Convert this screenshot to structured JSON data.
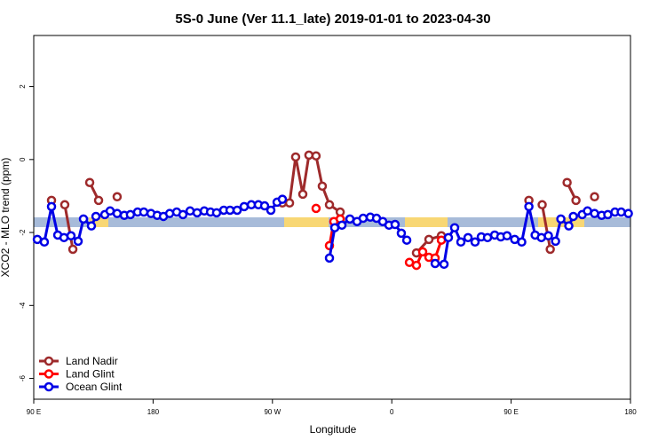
{
  "chart_data": {
    "type": "line",
    "title": "5S-0 June (Ver 11.1_late)   2019-01-01 to 2023-04-30",
    "x_label": "Longitude",
    "y_label": "XCO2 - MLO trend (ppm)",
    "xlim": [
      90,
      540
    ],
    "xticks": [
      {
        "value": 90,
        "label": "90 E"
      },
      {
        "value": 180,
        "label": "180"
      },
      {
        "value": 270,
        "label": "90 W"
      },
      {
        "value": 360,
        "label": "0"
      },
      {
        "value": 450,
        "label": "90 E"
      },
      {
        "value": 540,
        "label": "180"
      }
    ],
    "ylim": [
      -6.57,
      3.4
    ],
    "yticks": [
      2,
      0,
      -2,
      -4,
      -6
    ],
    "legend": "bottom-left",
    "series": [
      {
        "name": "Land Nadir",
        "color": "#9e2a2b",
        "x": [
          103.4,
          null,
          113.4,
          119.5,
          null,
          132.2,
          138.9,
          null,
          152.9,
          null,
          277.5,
          282.9,
          287.5,
          292.9,
          297.5,
          302.9,
          307.6,
          313,
          321.1,
          null,
          378.6,
          388,
          397.4,
          null,
          463.4,
          null,
          473.4,
          479.5,
          null,
          492.2,
          498.9,
          null,
          512.9
        ],
        "values": [
          -1.12,
          null,
          -1.24,
          -2.46,
          null,
          -0.63,
          -1.12,
          null,
          -1.02,
          null,
          -1.19,
          -1.19,
          0.07,
          -0.95,
          0.12,
          0.1,
          -0.73,
          -1.24,
          -1.44,
          null,
          -2.56,
          -2.19,
          -2.09,
          null,
          -1.12,
          null,
          -1.24,
          -2.46,
          null,
          -0.63,
          -1.12,
          null,
          -1.02
        ]
      },
      {
        "name": "Land Glint",
        "color": "#ff0000",
        "x": [
          302.9,
          null,
          313,
          316.3,
          321.1,
          null,
          373.3,
          378.6,
          383.3,
          388,
          392.7,
          397.4
        ],
        "values": [
          -1.34,
          null,
          -2.36,
          -1.7,
          -1.63,
          null,
          -2.82,
          -2.9,
          -2.53,
          -2.68,
          -2.7,
          -2.21
        ]
      },
      {
        "name": "Ocean Glint",
        "color": "#0000e6",
        "x": [
          92.7,
          98,
          103.4,
          108.1,
          112.8,
          118.1,
          123.5,
          127.5,
          133.5,
          136.9,
          143.6,
          147.6,
          152.9,
          158.3,
          162.9,
          168.3,
          173,
          178.4,
          183.1,
          187.8,
          192.5,
          197.8,
          202.5,
          207.9,
          213.2,
          218.6,
          223.3,
          227.9,
          233.3,
          238,
          243.4,
          248.7,
          254.1,
          259.4,
          264.1,
          268.8,
          273.5,
          277.5,
          null,
          313,
          317,
          322.4,
          328.4,
          333.8,
          338.4,
          343.8,
          348.5,
          353.2,
          357.9,
          362.5,
          367.2,
          371.3,
          null,
          392.7,
          399.4,
          402.7,
          407.4,
          412.1,
          417.5,
          422.8,
          427.5,
          432.2,
          437.6,
          442.2,
          446.9,
          452.7,
          458,
          463.4,
          468.1,
          472.8,
          478.1,
          483.5,
          487.5,
          493.5,
          496.9,
          503.6,
          507.6,
          512.9,
          518.3,
          522.9,
          528.3,
          533,
          538.4
        ],
        "values": [
          -2.19,
          -2.26,
          -1.29,
          -2.07,
          -2.14,
          -2.09,
          -2.24,
          -1.63,
          -1.82,
          -1.56,
          -1.51,
          -1.41,
          -1.48,
          -1.53,
          -1.51,
          -1.44,
          -1.44,
          -1.48,
          -1.53,
          -1.56,
          -1.48,
          -1.44,
          -1.51,
          -1.41,
          -1.46,
          -1.41,
          -1.44,
          -1.46,
          -1.39,
          -1.39,
          -1.39,
          -1.29,
          -1.24,
          -1.24,
          -1.27,
          -1.39,
          -1.17,
          -1.09,
          null,
          -2.7,
          -1.87,
          -1.8,
          -1.63,
          -1.7,
          -1.61,
          -1.58,
          -1.61,
          -1.7,
          -1.8,
          -1.78,
          -2.02,
          -2.21,
          null,
          -2.85,
          -2.87,
          -2.14,
          -1.87,
          -2.26,
          -2.14,
          -2.26,
          -2.12,
          -2.14,
          -2.07,
          -2.12,
          -2.09,
          -2.19,
          -2.26,
          -1.29,
          -2.07,
          -2.14,
          -2.09,
          -2.24,
          -1.63,
          -1.82,
          -1.56,
          -1.51,
          -1.41,
          -1.48,
          -1.53,
          -1.51,
          -1.44,
          -1.44,
          -1.48
        ]
      }
    ]
  }
}
